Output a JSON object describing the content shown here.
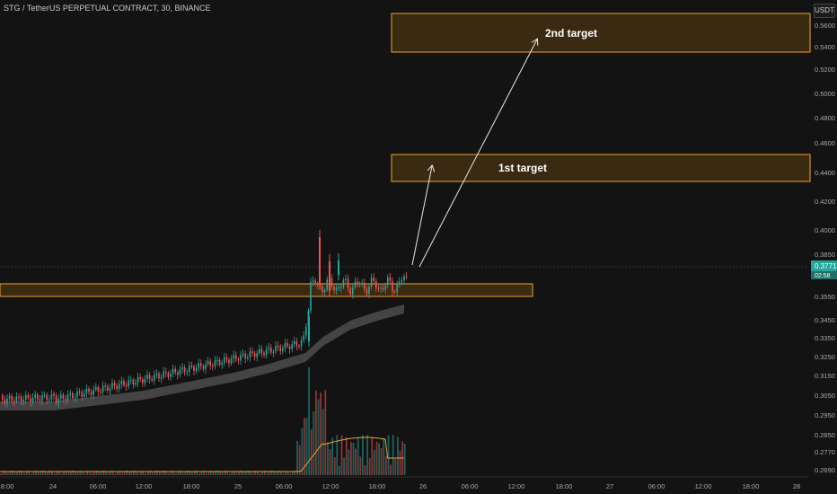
{
  "header": {
    "title": "STG / TetherUS PERPETUAL CONTRACT, 30, BINANCE",
    "currency": "USDT"
  },
  "price_axis": {
    "labels": [
      "0.5600",
      "0.5400",
      "0.5200",
      "0.5000",
      "0.4800",
      "0.4600",
      "0.4400",
      "0.4200",
      "0.4000",
      "0.3850",
      "0.3550",
      "0.3450",
      "0.3350",
      "0.3250",
      "0.3150",
      "0.3050",
      "0.2950",
      "0.2850",
      "0.2770",
      "0.2690"
    ],
    "current_price": "0.3771",
    "countdown": "02:58"
  },
  "time_axis": {
    "labels": [
      "18:00",
      "24",
      "06:00",
      "12:00",
      "18:00",
      "25",
      "06:00",
      "12:00",
      "18:00",
      "26",
      "06:00",
      "12:00",
      "18:00",
      "27",
      "06:00",
      "12:00",
      "18:00",
      "28"
    ]
  },
  "annotations": {
    "target1": "1st target",
    "target2": "2nd target"
  },
  "colors": {
    "background": "#131313",
    "up": "#26a69a",
    "down": "#ef5350",
    "zone_fill": "#3b2a12",
    "zone_stroke": "#f0a030",
    "ma_band": "#4a4a4a",
    "volume_ma": "#f0a030",
    "arrow": "#e8e8e8"
  },
  "chart_data": {
    "type": "candlestick",
    "timeframe": "30",
    "price_levels": {
      "support_zone": [
        0.36,
        0.366
      ],
      "target_1_zone": [
        0.434,
        0.454
      ],
      "target_2_zone": [
        0.538,
        0.565
      ]
    }
  }
}
